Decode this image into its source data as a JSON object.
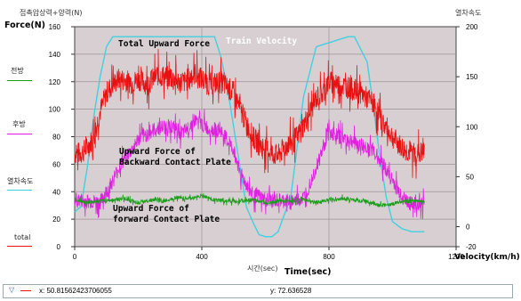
{
  "header": {
    "left_title_kor": "접촉압상력+양력(N)",
    "left_title_en": "Force(N)",
    "right_title_kor": "열차속도"
  },
  "legend": [
    {
      "label": "전방",
      "color": "#1a9e1a"
    },
    {
      "label": "후방",
      "color": "#e020e0"
    },
    {
      "label": "열차속도",
      "color": "#40d0e0"
    },
    {
      "label": "total",
      "color": "#e81010"
    }
  ],
  "annotations": {
    "total": "Total Upward Force",
    "train": "Train Velocity",
    "backward": "Upward Force of\nBackward Contact Plate",
    "forward": "Upward Force of\nforward Contact Plate"
  },
  "xaxis": {
    "label_kor": "시간(sec)",
    "label_en": "Time(sec)"
  },
  "y2_label_en": "Velocity(km/h)",
  "status": {
    "x": "x: 50.81562423706055",
    "y": "y: 72.636528"
  },
  "chart_data": {
    "type": "line",
    "title": "",
    "xlabel": "Time(sec)",
    "ylabel": "Force(N)",
    "y2label": "Velocity(km/h)",
    "xlim": [
      0,
      1200
    ],
    "ylim": [
      0,
      160
    ],
    "y2lim": [
      -20,
      200
    ],
    "xticks": [
      0,
      400,
      800,
      1200
    ],
    "xtick_labels": [
      "0",
      "400",
      "800",
      "1200"
    ],
    "yticks": [
      0,
      20,
      40,
      60,
      80,
      100,
      120,
      140,
      160
    ],
    "y2ticks": [
      -20,
      0,
      50,
      100,
      150,
      200
    ],
    "grid": true,
    "series": [
      {
        "name": "total",
        "axis": "left",
        "color": "#e81010",
        "x": [
          0,
          20,
          40,
          60,
          80,
          100,
          120,
          140,
          160,
          180,
          200,
          230,
          260,
          300,
          340,
          380,
          420,
          460,
          500,
          520,
          540,
          560,
          580,
          600,
          620,
          640,
          660,
          700,
          720,
          740,
          760,
          780,
          800,
          830,
          860,
          900,
          940,
          970,
          1000,
          1020,
          1040,
          1060,
          1080,
          1100
        ],
        "y": [
          68,
          68,
          72,
          80,
          98,
          112,
          118,
          122,
          121,
          119,
          122,
          118,
          125,
          123,
          119,
          126,
          118,
          120,
          112,
          100,
          90,
          80,
          74,
          72,
          68,
          66,
          72,
          80,
          88,
          98,
          108,
          112,
          120,
          118,
          116,
          112,
          104,
          90,
          80,
          74,
          70,
          68,
          68,
          68
        ],
        "noise": 12
      },
      {
        "name": "backward",
        "axis": "left",
        "color": "#e020e0",
        "x": [
          0,
          40,
          80,
          100,
          120,
          140,
          160,
          180,
          200,
          230,
          260,
          300,
          340,
          380,
          420,
          460,
          500,
          520,
          540,
          560,
          600,
          640,
          680,
          720,
          760,
          780,
          800,
          830,
          860,
          900,
          940,
          970,
          1000,
          1020,
          1040,
          1060,
          1080,
          1100
        ],
        "y": [
          34,
          33,
          32,
          40,
          48,
          58,
          65,
          70,
          78,
          82,
          86,
          88,
          82,
          92,
          86,
          84,
          70,
          55,
          45,
          38,
          34,
          33,
          33,
          35,
          58,
          70,
          84,
          80,
          78,
          74,
          70,
          60,
          48,
          40,
          34,
          31,
          31,
          31
        ],
        "noise": 8
      },
      {
        "name": "forward",
        "axis": "left",
        "color": "#1a9e1a",
        "x": [
          0,
          40,
          80,
          120,
          160,
          200,
          240,
          280,
          320,
          360,
          400,
          440,
          480,
          520,
          560,
          600,
          640,
          680,
          720,
          760,
          800,
          840,
          880,
          920,
          960,
          1000,
          1040,
          1080,
          1100
        ],
        "y": [
          34,
          32,
          33,
          34,
          35,
          32,
          34,
          33,
          36,
          35,
          37,
          34,
          33,
          33,
          34,
          32,
          33,
          33,
          34,
          32,
          34,
          35,
          34,
          33,
          30,
          31,
          33,
          33,
          33
        ],
        "noise": 2
      },
      {
        "name": "Train Velocity",
        "axis": "right",
        "color": "#40d0e0",
        "x": [
          0,
          20,
          40,
          60,
          80,
          100,
          120,
          440,
          460,
          480,
          500,
          520,
          540,
          560,
          580,
          600,
          620,
          640,
          680,
          700,
          720,
          760,
          860,
          880,
          920,
          940,
          960,
          980,
          1000,
          1030,
          1060,
          1080,
          1100
        ],
        "y": [
          15,
          20,
          60,
          110,
          150,
          180,
          190,
          190,
          170,
          140,
          100,
          60,
          20,
          5,
          -8,
          -10,
          -10,
          -5,
          30,
          80,
          130,
          180,
          190,
          190,
          165,
          120,
          70,
          30,
          5,
          -2,
          -5,
          -5,
          -5
        ],
        "noise": 0
      }
    ]
  }
}
